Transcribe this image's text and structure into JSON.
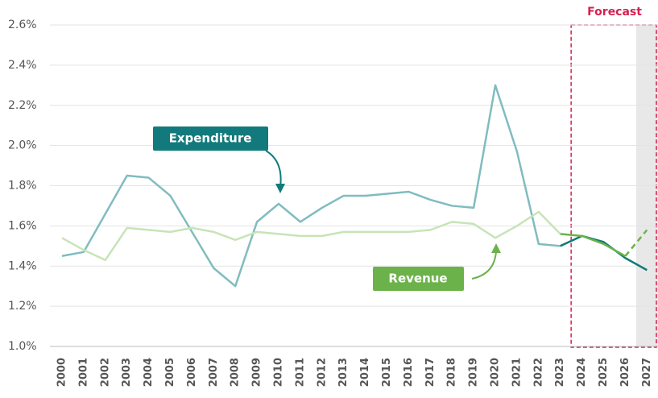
{
  "chart_data": {
    "type": "line",
    "categories": [
      "2000",
      "2001",
      "2002",
      "2003",
      "2004",
      "2005",
      "2006",
      "2007",
      "2008",
      "2009",
      "2010",
      "2011",
      "2012",
      "2013",
      "2014",
      "2015",
      "2016",
      "2017",
      "2018",
      "2019",
      "2020",
      "2021",
      "2022",
      "2023",
      "2024",
      "2025",
      "2026",
      "2027"
    ],
    "series": [
      {
        "name": "Expenditure",
        "color": "#80bcbf",
        "forecast_color": "#127a7c",
        "values": [
          1.45,
          1.47,
          1.66,
          1.85,
          1.84,
          1.75,
          1.57,
          1.39,
          1.3,
          1.62,
          1.71,
          1.62,
          1.69,
          1.75,
          1.75,
          1.76,
          1.77,
          1.73,
          1.7,
          1.69,
          2.3,
          1.97,
          1.51,
          1.5,
          1.55,
          1.52,
          1.44,
          1.38
        ]
      },
      {
        "name": "Revenue",
        "color": "#c7e4b8",
        "forecast_color": "#6cb24b",
        "values": [
          1.54,
          1.48,
          1.43,
          1.59,
          1.58,
          1.57,
          1.59,
          1.57,
          1.53,
          1.57,
          1.56,
          1.55,
          1.55,
          1.57,
          1.57,
          1.57,
          1.57,
          1.58,
          1.62,
          1.61,
          1.54,
          1.6,
          1.67,
          1.56,
          1.55,
          1.51,
          1.45,
          1.58
        ],
        "dashed_from": "2026"
      }
    ],
    "forecast": {
      "label": "Forecast",
      "from": "2024",
      "color": "#d6204f"
    },
    "shaded_from": "2027",
    "ylim": [
      1.0,
      2.6
    ],
    "yticks": [
      {
        "value": 1.0,
        "label": "1.0%"
      },
      {
        "value": 1.2,
        "label": "1.2%"
      },
      {
        "value": 1.4,
        "label": "1.4%"
      },
      {
        "value": 1.6,
        "label": "1.6%"
      },
      {
        "value": 1.8,
        "label": "1.8%"
      },
      {
        "value": 2.0,
        "label": "2.0%"
      },
      {
        "value": 2.2,
        "label": "2.2%"
      },
      {
        "value": 2.4,
        "label": "2.4%"
      },
      {
        "value": 2.6,
        "label": "2.6%"
      }
    ],
    "grid": true
  }
}
